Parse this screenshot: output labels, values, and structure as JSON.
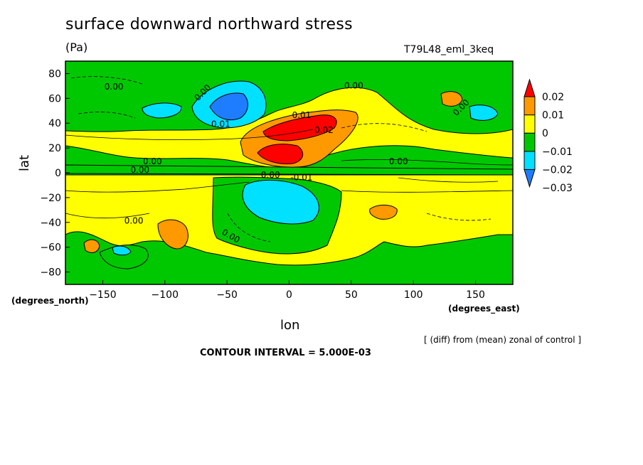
{
  "chart_data": {
    "type": "heatmap",
    "title": "surface downward northward stress",
    "units": "(Pa)",
    "run_label": "T79L48_eml_3keq",
    "xlabel": "lon",
    "ylabel": "lat",
    "x_unit": "(degrees_east)",
    "y_unit": "(degrees_north)",
    "xlim": [
      -180,
      180
    ],
    "ylim": [
      -90,
      90
    ],
    "xticks": [
      -150,
      -100,
      -50,
      0,
      50,
      100,
      150
    ],
    "yticks": [
      -80,
      -60,
      -40,
      -20,
      0,
      20,
      40,
      60,
      80
    ],
    "colorbar": {
      "levels": [
        -0.035,
        -0.03,
        -0.02,
        -0.01,
        0,
        0.01,
        0.02,
        0.025
      ],
      "labels": [
        "0.02",
        "0.01",
        "0",
        "-0.01",
        "-0.02",
        "-0.03"
      ],
      "colors": [
        "#1e7dff",
        "#00e0ff",
        "#00c800",
        "#ffff00",
        "#ff9900",
        "#ff0000"
      ]
    },
    "contour_labels": [
      "0.00",
      "0.00",
      "0.00",
      "0.00",
      "0.00",
      "0.00",
      "0.00",
      "0.00",
      "0.00",
      "0.01",
      "0.01",
      "0.02",
      "0.00",
      "-0.01"
    ],
    "regions": [
      {
        "name": "background-positive",
        "color": "#ffff00"
      },
      {
        "name": "tropical-positive-max",
        "lon": 0,
        "lat": 15,
        "value": 0.025
      },
      {
        "name": "midlat-positive-max",
        "lon": 15,
        "lat": 35,
        "value": 0.022
      },
      {
        "name": "tropical-negative-min",
        "lon": 5,
        "lat": -20,
        "value": -0.02
      },
      {
        "name": "northern-negative-min",
        "lon": -45,
        "lat": 50,
        "value": -0.03
      }
    ],
    "note": "[ (diff) from (mean) zonal of control ]",
    "contour_interval": "CONTOUR INTERVAL = 5.000E-03"
  }
}
